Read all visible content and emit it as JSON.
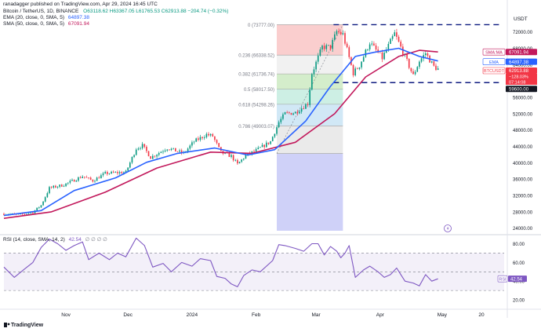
{
  "header": {
    "publisher": "ranadagger published on TradingView.com, Apr 29, 2024 16:45 UTC",
    "symbol": "Bitcoin / TetherUS, 1D, BINANCE",
    "ohlc": "O63118.62 H63367.05 L61765.53 C62913.88 −204.74 (−0.32%)",
    "ema_legend": "EMA (20, close, 0, SMA, 5)",
    "ema_value": "64897.38",
    "sma_legend": "SMA (50, close, 0, SMA, 5)",
    "sma_value": "67091.94",
    "currency": "USDT",
    "rsi_legend": "RSI (14, close, SMA, 14, 2)",
    "rsi_value": "42.54",
    "rsi_extra": "∅ ∅ ∅ ∅",
    "footer": "TradingView"
  },
  "colors": {
    "up": "#089981",
    "down": "#f23645",
    "ema": "#2962ff",
    "sma": "#c2185b",
    "rsi": "#7e57c2",
    "dash": "#0d1a80"
  },
  "chart_data": [
    {
      "type": "candlestick",
      "title": "Bitcoin / TetherUS, 1D, BINANCE",
      "y_axis_ticks": [
        24000,
        28000,
        32000,
        36000,
        40000,
        44000,
        48000,
        52000,
        56000,
        60000,
        64000,
        68000,
        72000
      ],
      "y_tick_labels": [
        "24000.00",
        "28000.00",
        "32000.00",
        "36000.00",
        "40000.00",
        "44000.00",
        "48000.00",
        "52000.00",
        "56000.00",
        "60000.00",
        "64000.00",
        "68000.00",
        "72000.00"
      ],
      "ylim": [
        22600,
        75200
      ],
      "x_tick_labels": [
        {
          "label": "Nov",
          "date": "2023-11-01"
        },
        {
          "label": "Dec",
          "date": "2023-12-01"
        },
        {
          "label": "2024",
          "date": "2024-01-01"
        },
        {
          "label": "Feb",
          "date": "2024-02-01"
        },
        {
          "label": "Mar",
          "date": "2024-03-01"
        },
        {
          "label": "Apr",
          "date": "2024-04-01"
        },
        {
          "label": "May",
          "date": "2024-05-01"
        },
        {
          "label": "20",
          "date": "2024-05-20"
        }
      ],
      "xlim": [
        "2023-10-02",
        "2024-05-31"
      ],
      "price_path": [
        [
          "2023-10-02",
          27500
        ],
        [
          "2023-10-10",
          27300
        ],
        [
          "2023-10-16",
          27900
        ],
        [
          "2023-10-20",
          29600
        ],
        [
          "2023-10-24",
          33800
        ],
        [
          "2023-10-31",
          34600
        ],
        [
          "2023-11-09",
          36700
        ],
        [
          "2023-11-14",
          35600
        ],
        [
          "2023-11-20",
          37400
        ],
        [
          "2023-11-30",
          37700
        ],
        [
          "2023-12-05",
          43500
        ],
        [
          "2023-12-08",
          44200
        ],
        [
          "2023-12-12",
          41300
        ],
        [
          "2023-12-20",
          43600
        ],
        [
          "2023-12-28",
          42300
        ],
        [
          "2024-01-02",
          45200
        ],
        [
          "2024-01-08",
          46900
        ],
        [
          "2024-01-11",
          46500
        ],
        [
          "2024-01-15",
          42500
        ],
        [
          "2024-01-20",
          41600
        ],
        [
          "2024-01-23",
          39600
        ],
        [
          "2024-01-27",
          41800
        ],
        [
          "2024-02-01",
          43000
        ],
        [
          "2024-02-08",
          45200
        ],
        [
          "2024-02-12",
          49900
        ],
        [
          "2024-02-15",
          52000
        ],
        [
          "2024-02-20",
          52300
        ],
        [
          "2024-02-26",
          54500
        ],
        [
          "2024-02-28",
          61900
        ],
        [
          "2024-03-04",
          68300
        ],
        [
          "2024-03-08",
          68300
        ],
        [
          "2024-03-11",
          72100
        ],
        [
          "2024-03-14",
          71400
        ],
        [
          "2024-03-19",
          61900
        ],
        [
          "2024-03-22",
          63800
        ],
        [
          "2024-03-27",
          69400
        ],
        [
          "2024-04-02",
          65600
        ],
        [
          "2024-04-08",
          71600
        ],
        [
          "2024-04-12",
          67100
        ],
        [
          "2024-04-17",
          61300
        ],
        [
          "2024-04-20",
          64900
        ],
        [
          "2024-04-23",
          66800
        ],
        [
          "2024-04-27",
          63500
        ],
        [
          "2024-04-29",
          62914
        ]
      ],
      "ema_20_path": [
        [
          "2023-10-02",
          27100
        ],
        [
          "2023-10-20",
          28300
        ],
        [
          "2023-11-05",
          33200
        ],
        [
          "2023-11-25",
          36300
        ],
        [
          "2023-12-10",
          40100
        ],
        [
          "2023-12-25",
          42300
        ],
        [
          "2024-01-12",
          43600
        ],
        [
          "2024-01-28",
          41900
        ],
        [
          "2024-02-10",
          43200
        ],
        [
          "2024-02-25",
          50200
        ],
        [
          "2024-03-08",
          58700
        ],
        [
          "2024-03-20",
          66000
        ],
        [
          "2024-03-29",
          67000
        ],
        [
          "2024-04-10",
          68000
        ],
        [
          "2024-04-20",
          66000
        ],
        [
          "2024-04-29",
          64897
        ]
      ],
      "sma_50_path": [
        [
          "2023-10-02",
          26400
        ],
        [
          "2023-10-25",
          28000
        ],
        [
          "2023-11-20",
          32800
        ],
        [
          "2023-12-15",
          38700
        ],
        [
          "2024-01-10",
          42600
        ],
        [
          "2024-01-30",
          42300
        ],
        [
          "2024-02-20",
          45000
        ],
        [
          "2024-03-10",
          52000
        ],
        [
          "2024-03-25",
          61000
        ],
        [
          "2024-04-10",
          66000
        ],
        [
          "2024-04-20",
          67500
        ],
        [
          "2024-04-29",
          67092
        ]
      ],
      "fibonacci": {
        "levels": [
          {
            "ratio": "0",
            "price": 73777.0,
            "label": "0 (73777.00)",
            "fill": "#f9c6c6"
          },
          {
            "ratio": "0.236",
            "price": 66338.52,
            "label": "0.236 (66338.52)",
            "fill": "#eeeeee"
          },
          {
            "ratio": "0.382",
            "price": 61736.74,
            "label": "0.382 (61736.74)",
            "fill": "#cdeac2"
          },
          {
            "ratio": "0.5",
            "price": 58017.5,
            "label": "0.5 (58017.50)",
            "fill": "#c4ecdf"
          },
          {
            "ratio": "0.618",
            "price": 54298.26,
            "label": "0.618 (54298.26)",
            "fill": "#c9e4f5"
          },
          {
            "ratio": "0.786",
            "price": 49003.07,
            "label": "0.786 (49003.07)",
            "fill": "#e6e6e6"
          },
          {
            "ratio": "1",
            "price": 42258.0,
            "label": "",
            "fill": "#c7c9f7"
          }
        ],
        "start_date": "2024-02-11",
        "end_date": "2024-03-14"
      },
      "horizontal_lines": [
        {
          "price": 73777,
          "label": ""
        },
        {
          "price": 59600,
          "label": "59600.00"
        }
      ],
      "price_tags": [
        {
          "label": "72000.00",
          "price": 72000,
          "style": "axis"
        },
        {
          "label": "SMA:MA",
          "value": "67091.94",
          "price": 67092,
          "color": "#c2185b"
        },
        {
          "label": "EMA",
          "value": "64897.38",
          "price": 64897,
          "color": "#2962ff"
        },
        {
          "label": "BTCUSDT",
          "value": "62913.88",
          "price": 62914,
          "color": "#f23645"
        },
        {
          "label": "−128.03%",
          "price": 61700,
          "color": "#f23645"
        },
        {
          "label": "07:14:08",
          "price": 60700,
          "color": "#f23645"
        },
        {
          "label": "59600.00",
          "price": 59600,
          "color": "#131722"
        }
      ]
    },
    {
      "type": "line",
      "title": "RSI (14, close, SMA, 14, 2)",
      "y_axis_ticks": [
        20,
        40,
        60,
        80
      ],
      "y_tick_labels": [
        "20.00",
        "40.00",
        "60.00",
        "80.00"
      ],
      "ylim": [
        15,
        88
      ],
      "band": [
        30,
        70
      ],
      "current": 42.54,
      "series": [
        {
          "name": "",
          "points": [
            [
              "2023-10-02",
              55
            ],
            [
              "2023-10-07",
              44
            ],
            [
              "2023-10-12",
              53
            ],
            [
              "2023-10-16",
              60
            ],
            [
              "2023-10-20",
              76
            ],
            [
              "2023-10-24",
              85
            ],
            [
              "2023-10-28",
              80
            ],
            [
              "2023-11-01",
              73
            ],
            [
              "2023-11-05",
              78
            ],
            [
              "2023-11-09",
              82
            ],
            [
              "2023-11-12",
              63
            ],
            [
              "2023-11-17",
              70
            ],
            [
              "2023-11-22",
              63
            ],
            [
              "2023-11-26",
              70
            ],
            [
              "2023-11-30",
              66
            ],
            [
              "2023-12-05",
              86
            ],
            [
              "2023-12-09",
              78
            ],
            [
              "2023-12-13",
              55
            ],
            [
              "2023-12-18",
              59
            ],
            [
              "2023-12-22",
              50
            ],
            [
              "2023-12-27",
              60
            ],
            [
              "2024-01-01",
              56
            ],
            [
              "2024-01-05",
              64
            ],
            [
              "2024-01-10",
              62
            ],
            [
              "2024-01-13",
              45
            ],
            [
              "2024-01-17",
              43
            ],
            [
              "2024-01-20",
              37
            ],
            [
              "2024-01-23",
              34
            ],
            [
              "2024-01-26",
              46
            ],
            [
              "2024-01-30",
              52
            ],
            [
              "2024-02-03",
              50
            ],
            [
              "2024-02-09",
              62
            ],
            [
              "2024-02-12",
              79
            ],
            [
              "2024-02-15",
              78
            ],
            [
              "2024-02-20",
              75
            ],
            [
              "2024-02-24",
              72
            ],
            [
              "2024-02-28",
              80
            ],
            [
              "2024-03-02",
              80
            ],
            [
              "2024-03-05",
              68
            ],
            [
              "2024-03-08",
              77
            ],
            [
              "2024-03-11",
              72
            ],
            [
              "2024-03-13",
              65
            ],
            [
              "2024-03-15",
              70
            ],
            [
              "2024-03-17",
              78
            ],
            [
              "2024-03-20",
              44
            ],
            [
              "2024-03-24",
              52
            ],
            [
              "2024-03-27",
              56
            ],
            [
              "2024-03-31",
              50
            ],
            [
              "2024-04-03",
              44
            ],
            [
              "2024-04-06",
              47
            ],
            [
              "2024-04-09",
              54
            ],
            [
              "2024-04-13",
              40
            ],
            [
              "2024-04-17",
              38
            ],
            [
              "2024-04-20",
              35
            ],
            [
              "2024-04-23",
              47
            ],
            [
              "2024-04-26",
              40
            ],
            [
              "2024-04-29",
              42.54
            ]
          ]
        }
      ]
    }
  ]
}
